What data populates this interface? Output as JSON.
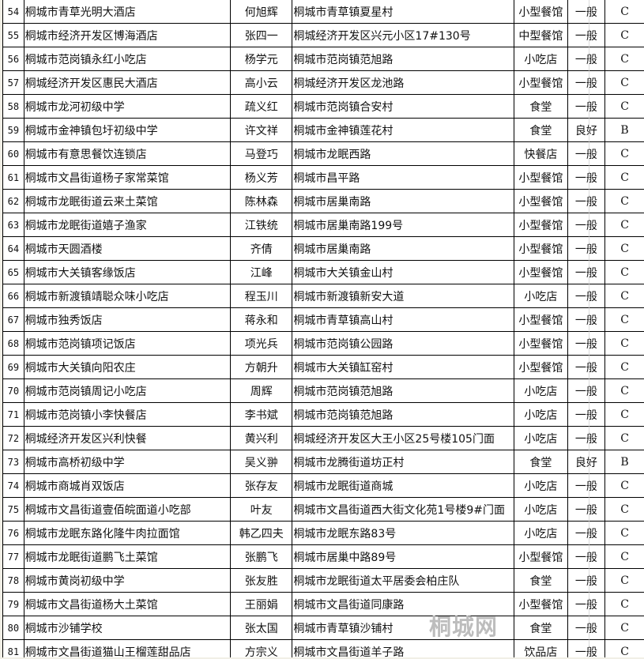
{
  "watermark": "桐城网",
  "rows": [
    [
      "54",
      "桐城市青草光明大酒店",
      "何旭辉",
      "桐城市青草镇夏星村",
      "小型餐馆",
      "一般",
      "C"
    ],
    [
      "55",
      "桐城市经济开发区博海酒店",
      "张四一",
      "桐城经济开发区兴元小区17#130号",
      "中型餐馆",
      "一般",
      "C"
    ],
    [
      "56",
      "桐城市范岗镇永红小吃店",
      "杨学元",
      "桐城市范岗镇范旭路",
      "小吃店",
      "一般",
      "C"
    ],
    [
      "57",
      "桐城经济开发区惠民大酒店",
      "高小云",
      "桐城经济开发区龙池路",
      "小型餐馆",
      "一般",
      "C"
    ],
    [
      "58",
      "桐城市龙河初级中学",
      "疏义红",
      "桐城市范岗镇合安村",
      "食堂",
      "一般",
      "C"
    ],
    [
      "59",
      "桐城市金神镇包圩初级中学",
      "许文祥",
      "桐城市金神镇莲花村",
      "食堂",
      "良好",
      "B"
    ],
    [
      "60",
      "桐城市有意思餐饮连锁店",
      "马登巧",
      "桐城市龙眠西路",
      "快餐店",
      "一般",
      "C"
    ],
    [
      "61",
      "桐城市文昌街道杨子家常菜馆",
      "杨义芳",
      "桐城市昌平路",
      "小型餐馆",
      "一般",
      "C"
    ],
    [
      "62",
      "桐城市龙眠街道云来土菜馆",
      "陈林森",
      "桐城市居巢南路",
      "小型餐馆",
      "一般",
      "C"
    ],
    [
      "63",
      "桐城市龙眠街道嬉子渔家",
      "江铁统",
      "桐城市居巢南路199号",
      "小型餐馆",
      "一般",
      "C"
    ],
    [
      "64",
      "桐城市天圆酒楼",
      "齐倩",
      "桐城市居巢南路",
      "小型餐馆",
      "一般",
      "C"
    ],
    [
      "65",
      "桐城市大关镇客缘饭店",
      "江峰",
      "桐城市大关镇金山村",
      "小型餐馆",
      "一般",
      "C"
    ],
    [
      "66",
      "桐城市新渡镇靖聪众味小吃店",
      "程玉川",
      "桐城市新渡镇新安大道",
      "小吃店",
      "一般",
      "C"
    ],
    [
      "67",
      "桐城市独秀饭店",
      "蒋永和",
      "桐城市青草镇高山村",
      "小型餐馆",
      "一般",
      "C"
    ],
    [
      "68",
      "桐城市范岗镇项记饭店",
      "项光兵",
      "桐城市范岗镇公园路",
      "小型餐馆",
      "一般",
      "C"
    ],
    [
      "69",
      "桐城市大关镇向阳农庄",
      "方朝升",
      "桐城市大关镇缸窑村",
      "小型餐馆",
      "一般",
      "C"
    ],
    [
      "70",
      "桐城市范岗镇周记小吃店",
      "周辉",
      "桐城市范岗镇范旭路",
      "小吃店",
      "一般",
      "C"
    ],
    [
      "71",
      "桐城市范岗镇小李快餐店",
      "李书斌",
      "桐城市范岗镇范旭路",
      "小吃店",
      "一般",
      "C"
    ],
    [
      "72",
      "桐城经济开发区兴利快餐",
      "黄兴利",
      "桐城经济开发区大王小区25号楼105门面",
      "小吃店",
      "一般",
      "C"
    ],
    [
      "73",
      "桐城市高桥初级中学",
      "吴义翀",
      "桐城市龙腾街道坊正村",
      "食堂",
      "良好",
      "B"
    ],
    [
      "74",
      "桐城市商城肖双饭店",
      "张存友",
      "桐城市龙眠街道商城",
      "小吃店",
      "一般",
      "C"
    ],
    [
      "75",
      "桐城市文昌街道壹佰皖面道小吃部",
      "叶友",
      "桐城市文昌街道西大街文化苑1号楼9#门面",
      "小吃店",
      "一般",
      "C"
    ],
    [
      "76",
      "桐城市龙眠东路化隆牛肉拉面馆",
      "韩乙四夫",
      "桐城市龙眠东路83号",
      "小吃店",
      "一般",
      "C"
    ],
    [
      "77",
      "桐城市龙眠街道鹏飞土菜馆",
      "张鹏飞",
      "桐城市居巢中路89号",
      "小型餐馆",
      "一般",
      "C"
    ],
    [
      "78",
      "桐城市黄岗初级中学",
      "张友胜",
      "桐城市龙眠街道太平居委会柏庄队",
      "食堂",
      "一般",
      "C"
    ],
    [
      "79",
      "桐城市文昌街道杨大土菜馆",
      "王丽娟",
      "桐城市文昌街道同康路",
      "小型餐馆",
      "一般",
      "C"
    ],
    [
      "80",
      "桐城市沙铺学校",
      "张太国",
      "桐城市青草镇沙铺村",
      "食堂",
      "一般",
      "C"
    ],
    [
      "81",
      "桐城市文昌街道猫山王榴莲甜品店",
      "方宗义",
      "桐城市文昌街道羊子路",
      "饮品店",
      "一般",
      "C"
    ]
  ]
}
